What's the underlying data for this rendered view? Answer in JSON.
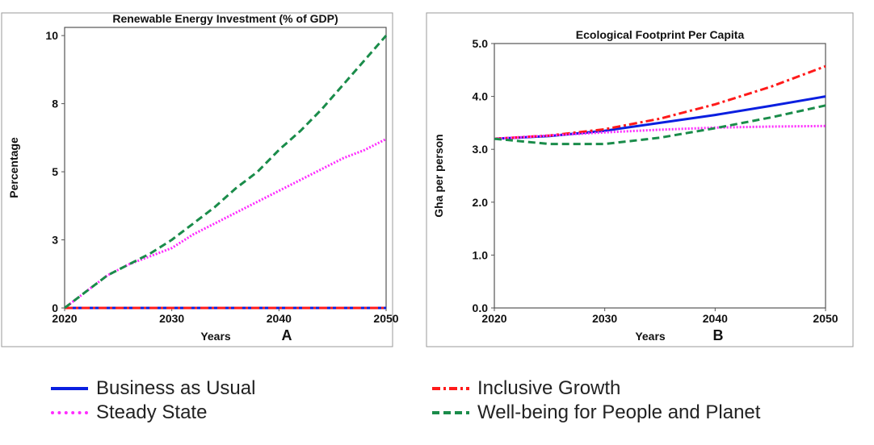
{
  "chart_data": [
    {
      "type": "line",
      "title": "Renewable Energy Investment (% of GDP)",
      "xlabel": "Years",
      "ylabel": "Percentage",
      "panel_label": "A",
      "xlim": [
        2020,
        2050
      ],
      "ylim": [
        0,
        10.3
      ],
      "x_ticks": [
        2020,
        2030,
        2040,
        2050
      ],
      "y_ticks": [
        0,
        2.5,
        5,
        7.5,
        10
      ],
      "y_tick_labels": [
        "0",
        "3",
        "5",
        "8",
        "10"
      ],
      "x": [
        2020,
        2022,
        2024,
        2026,
        2028,
        2030,
        2032,
        2034,
        2036,
        2038,
        2040,
        2042,
        2044,
        2046,
        2048,
        2050
      ],
      "series": [
        {
          "name": "Business as Usual",
          "values": [
            0,
            0,
            0,
            0,
            0,
            0,
            0,
            0,
            0,
            0,
            0,
            0,
            0,
            0,
            0,
            0
          ]
        },
        {
          "name": "Inclusive Growth",
          "values": [
            0,
            0,
            0,
            0,
            0,
            0,
            0,
            0,
            0,
            0,
            0,
            0,
            0,
            0,
            0,
            0
          ]
        },
        {
          "name": "Steady State",
          "values": [
            0.0,
            0.6,
            1.2,
            1.6,
            1.9,
            2.2,
            2.7,
            3.1,
            3.5,
            3.9,
            4.3,
            4.7,
            5.1,
            5.5,
            5.8,
            6.2
          ]
        },
        {
          "name": "Well-being for People and Planet",
          "values": [
            0.0,
            0.6,
            1.2,
            1.6,
            2.0,
            2.5,
            3.1,
            3.7,
            4.4,
            5.0,
            5.8,
            6.5,
            7.3,
            8.2,
            9.1,
            10.0
          ]
        }
      ]
    },
    {
      "type": "line",
      "title": "Ecological Footprint Per Capita",
      "xlabel": "Years",
      "ylabel": "Gha per person",
      "panel_label": "B",
      "xlim": [
        2020,
        2050
      ],
      "ylim": [
        0,
        5.0
      ],
      "x_ticks": [
        2020,
        2030,
        2040,
        2050
      ],
      "y_ticks": [
        0,
        1,
        2,
        3,
        4,
        5
      ],
      "y_tick_labels": [
        "0.0",
        "1.0",
        "2.0",
        "3.0",
        "4.0",
        "5.0"
      ],
      "x": [
        2020,
        2025,
        2030,
        2035,
        2040,
        2045,
        2050
      ],
      "series": [
        {
          "name": "Business as Usual",
          "values": [
            3.2,
            3.25,
            3.35,
            3.5,
            3.65,
            3.82,
            4.0
          ]
        },
        {
          "name": "Inclusive Growth",
          "values": [
            3.2,
            3.26,
            3.38,
            3.58,
            3.85,
            4.18,
            4.57
          ]
        },
        {
          "name": "Steady State",
          "values": [
            3.2,
            3.26,
            3.32,
            3.37,
            3.41,
            3.43,
            3.44
          ]
        },
        {
          "name": "Well-being for People and Planet",
          "values": [
            3.2,
            3.1,
            3.1,
            3.22,
            3.4,
            3.6,
            3.83
          ]
        }
      ]
    }
  ],
  "legend": [
    {
      "name": "Business as Usual",
      "color": "#0a1fe0",
      "dash": "solid"
    },
    {
      "name": "Inclusive Growth",
      "color": "#ff1a1a",
      "dash": "dashdot"
    },
    {
      "name": "Steady State",
      "color": "#ff2bff",
      "dash": "dotted"
    },
    {
      "name": "Well-being for People and Planet",
      "color": "#1a8c4a",
      "dash": "dashed"
    }
  ]
}
